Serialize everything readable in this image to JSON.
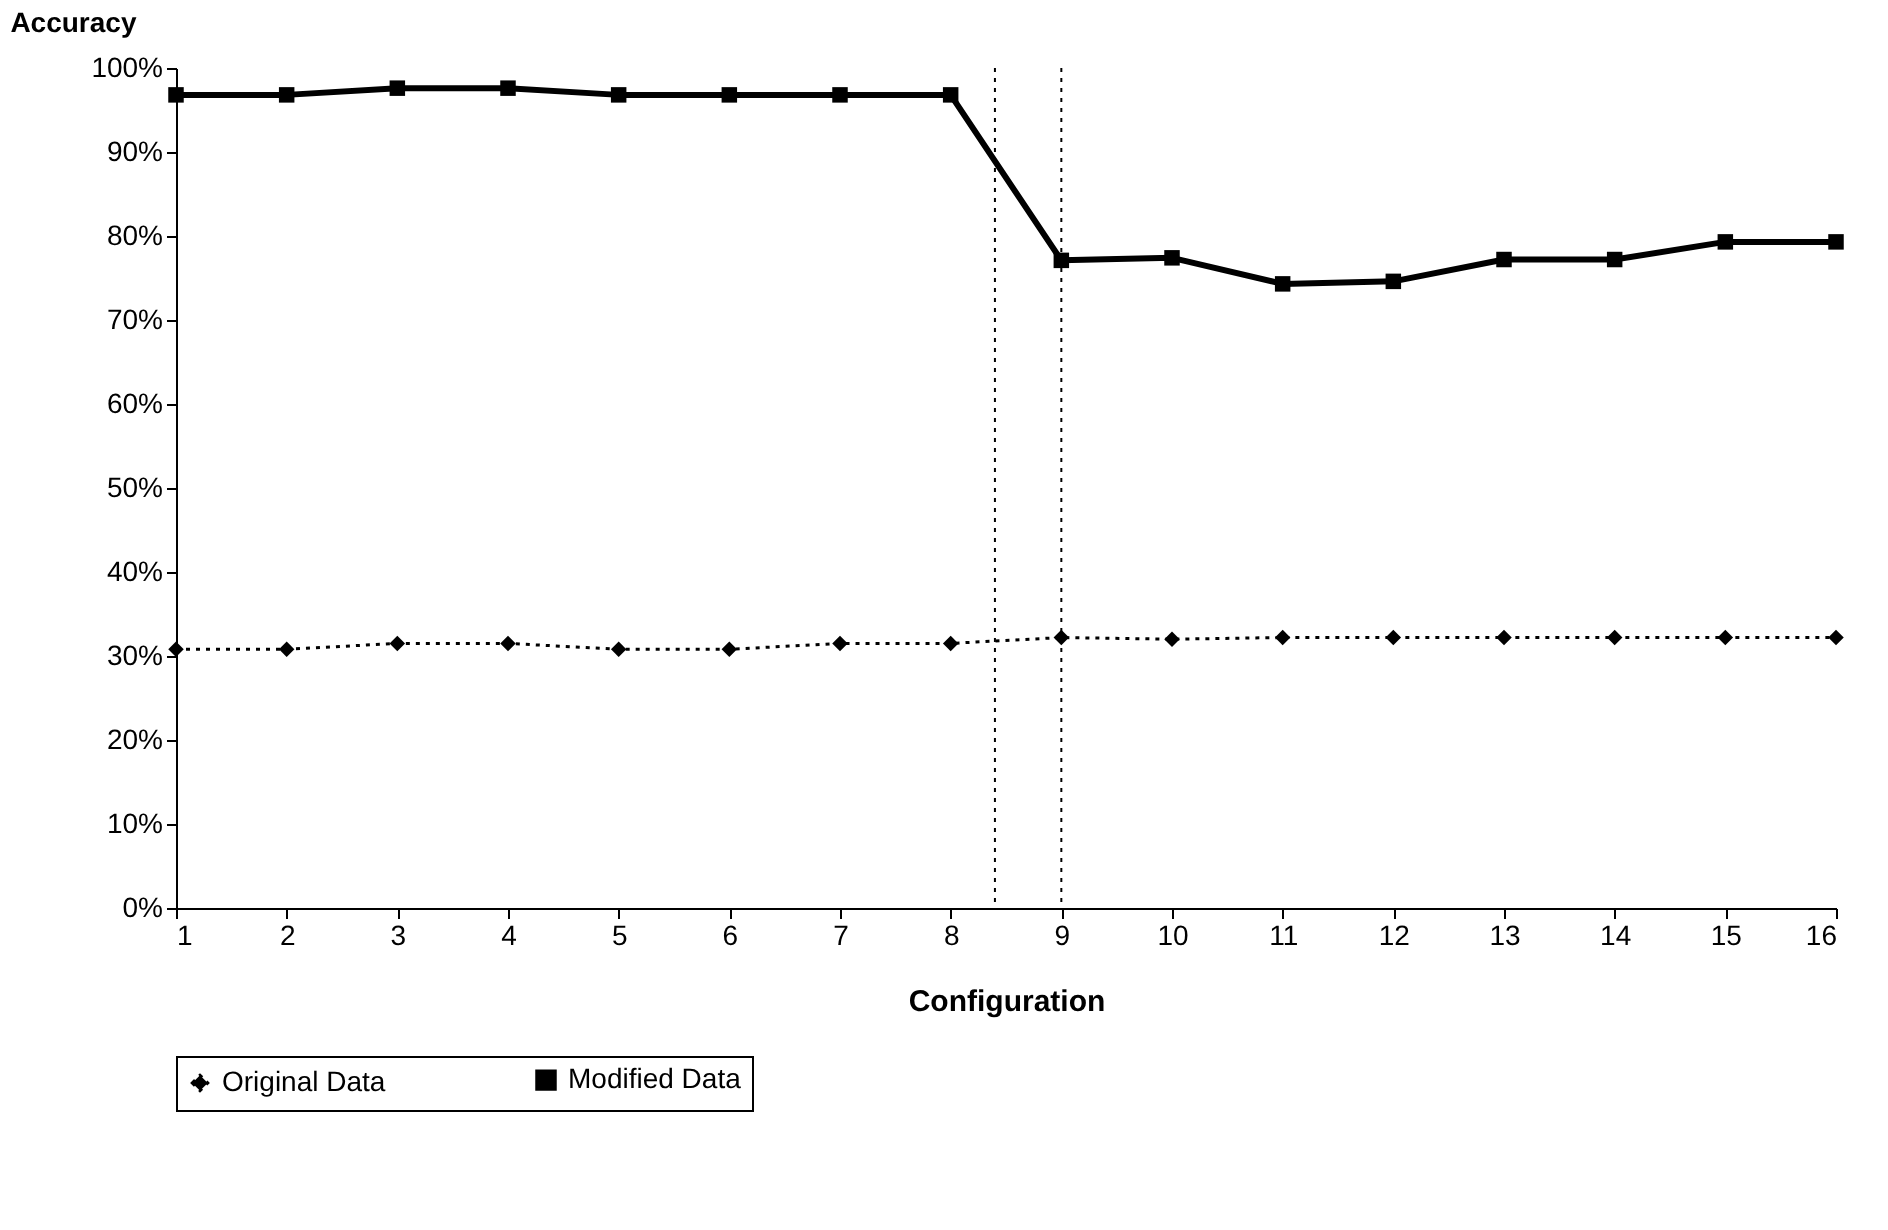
{
  "chart_data": {
    "type": "line",
    "ylabel": "Accuracy",
    "xlabel": "Configuration",
    "x": [
      1,
      2,
      3,
      4,
      5,
      6,
      7,
      8,
      9,
      10,
      11,
      12,
      13,
      14,
      15,
      16
    ],
    "xlim": [
      1,
      16
    ],
    "xticks": [
      1,
      2,
      3,
      4,
      5,
      6,
      7,
      8,
      9,
      10,
      11,
      12,
      13,
      14,
      15,
      16
    ],
    "ylim": [
      0,
      100
    ],
    "yticks": [
      {
        "value": 0,
        "label": "0%"
      },
      {
        "value": 10,
        "label": "10%"
      },
      {
        "value": 20,
        "label": "20%"
      },
      {
        "value": 30,
        "label": "30%"
      },
      {
        "value": 40,
        "label": "40%"
      },
      {
        "value": 50,
        "label": "50%"
      },
      {
        "value": 60,
        "label": "60%"
      },
      {
        "value": 70,
        "label": "70%"
      },
      {
        "value": 80,
        "label": "80%"
      },
      {
        "value": 90,
        "label": "90%"
      },
      {
        "value": 100,
        "label": "100%"
      }
    ],
    "series": [
      {
        "name": "Original Data",
        "color": "#000000",
        "marker": "diamond",
        "line_style": "dotted",
        "values": [
          30.8,
          30.8,
          31.5,
          31.5,
          30.8,
          30.8,
          31.5,
          31.5,
          32.2,
          32.0,
          32.2,
          32.2,
          32.2,
          32.2,
          32.2,
          32.2
        ]
      },
      {
        "name": "Modified Data",
        "color": "#000000",
        "marker": "square",
        "line_style": "solid",
        "values": [
          96.8,
          96.8,
          97.6,
          97.6,
          96.8,
          96.8,
          96.8,
          96.8,
          77.1,
          77.4,
          74.3,
          74.6,
          77.2,
          77.2,
          79.3,
          79.3
        ]
      }
    ],
    "ref_lines": [
      {
        "axis": "x",
        "value": 8.4,
        "line_style": "dotted",
        "color": "#000000"
      },
      {
        "axis": "x",
        "value": 9,
        "line_style": "dotted",
        "color": "#000000"
      }
    ],
    "grid": false,
    "legend": "bottom"
  }
}
